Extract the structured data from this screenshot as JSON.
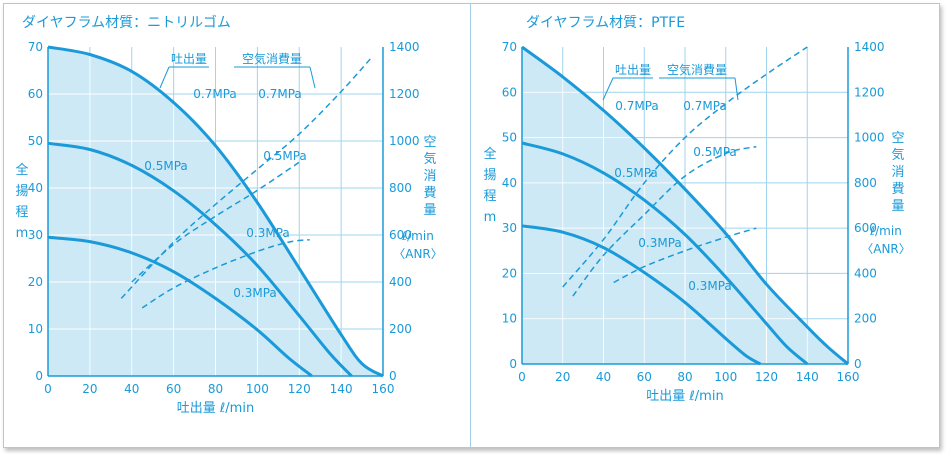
{
  "theme": {
    "line": "#1a9ad8",
    "fill": "#cde9f6",
    "grid": "#ffffff",
    "text": "#1a9ad8"
  },
  "chart_data": [
    {
      "type": "line",
      "title": "ダイヤフラム材質：ニトリルゴム",
      "xlabel": "吐出量 ℓ/min",
      "ylabel_left": "全揚程m",
      "ylabel_right_main": "空気消費量",
      "ylabel_right_unit": "ℓ/min",
      "ylabel_right_unit2": "〈ANR〉",
      "xlim": [
        0,
        160
      ],
      "ylim_left": [
        0,
        70
      ],
      "ylim_right": [
        0,
        1400
      ],
      "x_ticks": [
        "0",
        "20",
        "40",
        "60",
        "80",
        "100",
        "120",
        "140",
        "160"
      ],
      "y_left_ticks": [
        "0",
        "10",
        "20",
        "30",
        "40",
        "50",
        "60",
        "70"
      ],
      "y_right_ticks": [
        "0",
        "200",
        "400",
        "600",
        "800",
        "1000",
        "1200",
        "1400"
      ],
      "legend_discharge": "吐出量",
      "legend_air": "空気消費量",
      "discharge_series": [
        {
          "name": "0.7MPa",
          "x": [
            0,
            20,
            40,
            60,
            80,
            100,
            120,
            140,
            150,
            160
          ],
          "y": [
            70,
            68.4,
            64.8,
            58.2,
            49,
            36.9,
            22.9,
            8.8,
            2.6,
            0
          ]
        },
        {
          "name": "0.5MPa",
          "x": [
            0,
            20,
            40,
            60,
            80,
            100,
            120,
            135,
            145
          ],
          "y": [
            49.5,
            48.2,
            44.8,
            39.4,
            32.2,
            23.5,
            12.8,
            4.6,
            0
          ]
        },
        {
          "name": "0.3MPa",
          "x": [
            0,
            20,
            40,
            60,
            80,
            100,
            115,
            126
          ],
          "y": [
            29.5,
            28.6,
            26.2,
            22.2,
            16.5,
            9.8,
            3.8,
            0
          ]
        }
      ],
      "air_series": [
        {
          "name": "0.7MPa",
          "x": [
            35,
            60,
            80,
            100,
            120,
            140,
            155
          ],
          "y": [
            330,
            570,
            730,
            880,
            1030,
            1210,
            1360
          ]
        },
        {
          "name": "0.5MPa",
          "x": [
            40,
            60,
            80,
            100,
            120
          ],
          "y": [
            400,
            560,
            680,
            790,
            910
          ]
        },
        {
          "name": "0.3MPa",
          "x": [
            45,
            60,
            80,
            100,
            115,
            125
          ],
          "y": [
            290,
            375,
            460,
            530,
            570,
            580
          ]
        }
      ],
      "labels": {
        "d07": "0.7MPa",
        "d05": "0.5MPa",
        "d03": "0.3MPa",
        "a07": "0.7MPa",
        "a05": "0.5MPa",
        "a03": "0.3MPa"
      }
    },
    {
      "type": "line",
      "title": "ダイヤフラム材質：PTFE",
      "xlabel": "吐出量 ℓ/min",
      "ylabel_left": "全揚程m",
      "ylabel_right_main": "空気消費量",
      "ylabel_right_unit": "ℓ/min",
      "ylabel_right_unit2": "〈ANR〉",
      "xlim": [
        0,
        160
      ],
      "ylim_left": [
        0,
        70
      ],
      "ylim_right": [
        0,
        1400
      ],
      "x_ticks": [
        "0",
        "20",
        "40",
        "60",
        "80",
        "100",
        "120",
        "140",
        "160"
      ],
      "y_left_ticks": [
        "0",
        "10",
        "20",
        "30",
        "40",
        "50",
        "60",
        "70"
      ],
      "y_right_ticks": [
        "0",
        "200",
        "400",
        "600",
        "800",
        "1000",
        "1200",
        "1400"
      ],
      "legend_discharge": "吐出量",
      "legend_air": "空気消費量",
      "discharge_series": [
        {
          "name": "0.7MPa",
          "x": [
            0,
            20,
            40,
            60,
            80,
            100,
            120,
            140,
            150,
            160
          ],
          "y": [
            70,
            63.4,
            56,
            47.7,
            38.6,
            28.8,
            17.6,
            8.2,
            3.8,
            0
          ]
        },
        {
          "name": "0.5MPa",
          "x": [
            0,
            20,
            40,
            60,
            80,
            100,
            120,
            130,
            140
          ],
          "y": [
            48.8,
            46.4,
            42.2,
            36.2,
            28.6,
            19.2,
            8.9,
            3.8,
            0
          ]
        },
        {
          "name": "0.3MPa",
          "x": [
            0,
            20,
            40,
            60,
            80,
            100,
            110,
            117
          ],
          "y": [
            30.5,
            29.1,
            25.7,
            20.2,
            13.6,
            5.6,
            1.8,
            0
          ]
        }
      ],
      "air_series": [
        {
          "name": "0.7MPa",
          "x": [
            20,
            40,
            60,
            80,
            100,
            120,
            140
          ],
          "y": [
            340,
            550,
            800,
            1000,
            1150,
            1280,
            1400
          ]
        },
        {
          "name": "0.5MPa",
          "x": [
            25,
            40,
            60,
            80,
            100,
            115
          ],
          "y": [
            300,
            480,
            660,
            830,
            930,
            960
          ]
        },
        {
          "name": "0.3MPa",
          "x": [
            45,
            60,
            80,
            100,
            115
          ],
          "y": [
            360,
            430,
            500,
            560,
            600
          ]
        }
      ],
      "labels": {
        "d07": "0.7MPa",
        "d05": "0.5MPa",
        "d03": "0.3MPa",
        "a07": "0.7MPa",
        "a05": "0.5MPa",
        "a03": "0.3MPa"
      }
    }
  ]
}
